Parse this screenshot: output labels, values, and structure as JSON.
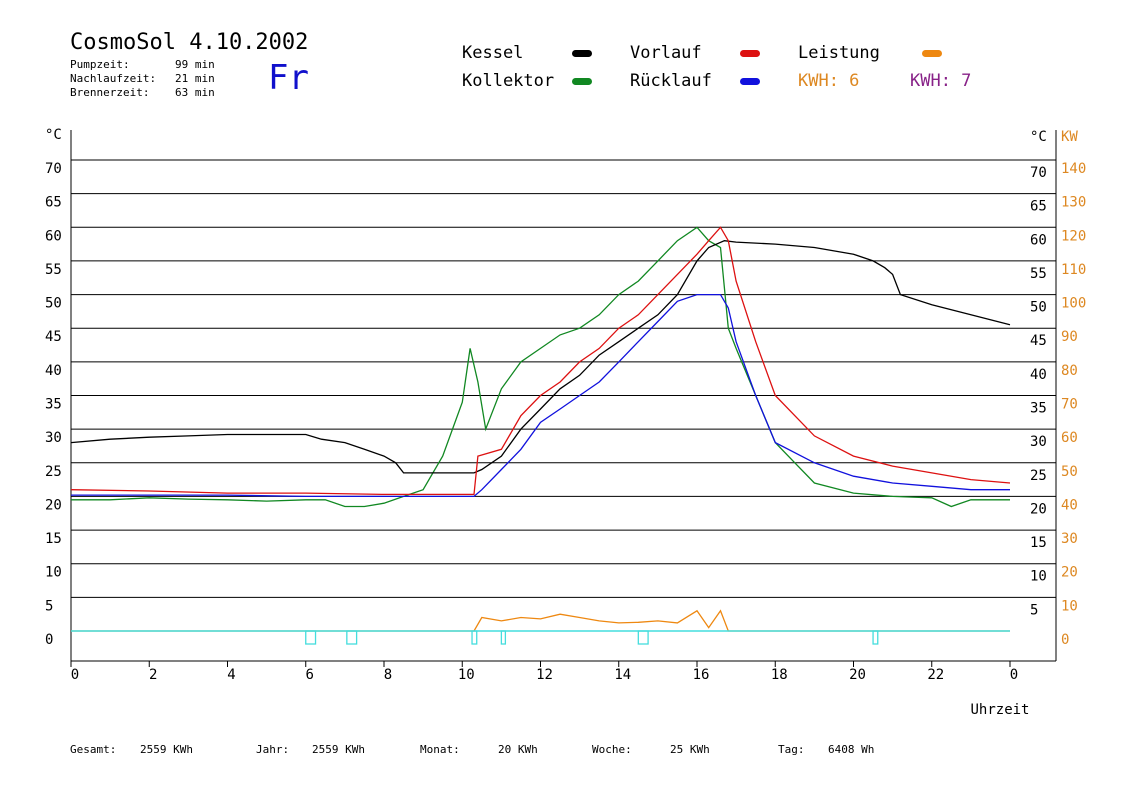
{
  "header": {
    "title": "CosmoSol 4.10.2002",
    "day": "Fr",
    "stats": [
      {
        "label": "Pumpzeit:",
        "value": "99 min"
      },
      {
        "label": "Nachlaufzeit:",
        "value": "21 min"
      },
      {
        "label": "Brennerzeit:",
        "value": "63 min"
      }
    ]
  },
  "legend": {
    "items": [
      {
        "label": "Kessel",
        "color": "#000000"
      },
      {
        "label": "Vorlauf",
        "color": "#dd1111"
      },
      {
        "label": "Leistung",
        "color": "#ee8811"
      },
      {
        "label": "Kollektor",
        "color": "#118822"
      },
      {
        "label": "Rücklauf",
        "color": "#1111dd"
      }
    ],
    "kwh": [
      {
        "text": "KWH: 6",
        "color": "#dd8822"
      },
      {
        "text": "KWH: 7",
        "color": "#882288"
      }
    ]
  },
  "footer": {
    "gesamt_label": "Gesamt:",
    "gesamt_value": "2559 KWh",
    "jahr_label": "Jahr:",
    "jahr_value": "2559 KWh",
    "monat_label": "Monat:",
    "monat_value": "20 KWh",
    "woche_label": "Woche:",
    "woche_value": "25 KWh",
    "tag_label": "Tag:",
    "tag_value": "6408 Wh"
  },
  "chart_data": {
    "type": "line",
    "xlabel": "Uhrzeit",
    "ylabel_left": "°C",
    "ylabel_right_1": "°C",
    "ylabel_right_2": "KW",
    "xlim": [
      0,
      24
    ],
    "ylim": [
      -5,
      75
    ],
    "x_ticks": [
      "0",
      "2",
      "4",
      "6",
      "8",
      "10",
      "12",
      "14",
      "16",
      "18",
      "20",
      "22",
      "0"
    ],
    "y_ticks_left": [
      "0",
      "5",
      "10",
      "15",
      "20",
      "25",
      "30",
      "35",
      "40",
      "45",
      "50",
      "55",
      "60",
      "65",
      "70"
    ],
    "y_ticks_right": [
      "5",
      "10",
      "15",
      "20",
      "25",
      "30",
      "35",
      "40",
      "45",
      "50",
      "55",
      "60",
      "65",
      "70"
    ],
    "y_ticks_kw": [
      "0",
      "10",
      "20",
      "30",
      "40",
      "50",
      "60",
      "70",
      "80",
      "90",
      "100",
      "110",
      "120",
      "130",
      "140"
    ],
    "grid": true,
    "series": [
      {
        "name": "Kessel",
        "color": "#000000",
        "x": [
          0,
          1,
          2,
          3,
          4,
          5,
          6,
          6.4,
          7,
          7.5,
          8,
          8.3,
          8.5,
          9,
          10,
          10.3,
          10.5,
          11,
          11.5,
          12,
          12.5,
          13,
          13.5,
          14,
          14.5,
          15,
          15.5,
          16,
          16.3,
          16.7,
          17,
          18,
          19,
          20,
          20.5,
          20.8,
          21,
          21.2,
          22,
          23,
          24
        ],
        "y": [
          28,
          28.5,
          28.8,
          29,
          29.2,
          29.2,
          29.2,
          28.5,
          28,
          27,
          26,
          25,
          23.5,
          23.5,
          23.5,
          23.5,
          24,
          26,
          30,
          33,
          36,
          38,
          41,
          43,
          45,
          47,
          50,
          55,
          57,
          58,
          57.8,
          57.5,
          57,
          56,
          55,
          54,
          53,
          50,
          48.5,
          47,
          45.5
        ]
      },
      {
        "name": "Vorlauf",
        "color": "#dd1111",
        "x": [
          0,
          2,
          4,
          6,
          8,
          10,
          10.3,
          10.4,
          11,
          11.5,
          12,
          12.5,
          13,
          13.5,
          14,
          14.5,
          15,
          15.5,
          16,
          16.3,
          16.6,
          16.8,
          17,
          17.5,
          18,
          19,
          20,
          21,
          22,
          23,
          24
        ],
        "y": [
          21,
          20.8,
          20.5,
          20.5,
          20.3,
          20.3,
          20.3,
          26,
          27,
          32,
          35,
          37,
          40,
          42,
          45,
          47,
          50,
          53,
          56,
          58,
          60,
          58,
          52,
          43,
          35,
          29,
          26,
          24.5,
          23.5,
          22.5,
          22
        ]
      },
      {
        "name": "Rücklauf",
        "color": "#1111dd",
        "x": [
          0,
          2,
          4,
          6,
          8,
          10,
          10.3,
          10.5,
          11,
          11.5,
          12,
          12.5,
          13,
          13.5,
          14,
          14.5,
          15,
          15.5,
          16,
          16.3,
          16.6,
          16.8,
          17,
          17.5,
          18,
          19,
          20,
          21,
          22,
          23,
          24
        ],
        "y": [
          20.2,
          20.2,
          20.2,
          20,
          20,
          20,
          20,
          21,
          24,
          27,
          31,
          33,
          35,
          37,
          40,
          43,
          46,
          49,
          50,
          50,
          50,
          48,
          43,
          35,
          28,
          25,
          23,
          22,
          21.5,
          21,
          21
        ]
      },
      {
        "name": "Kollektor",
        "color": "#118822",
        "x": [
          0,
          1,
          2,
          3,
          4,
          5,
          6,
          6.5,
          7,
          7.5,
          8,
          8.5,
          9,
          9.5,
          10,
          10.2,
          10.4,
          10.6,
          11,
          11.5,
          12,
          12.5,
          13,
          13.5,
          14,
          14.5,
          15,
          15.5,
          16,
          16.3,
          16.6,
          16.8,
          17,
          17.5,
          18,
          18.5,
          19,
          20,
          21,
          22,
          22.5,
          23,
          24
        ],
        "y": [
          19.5,
          19.5,
          19.8,
          19.6,
          19.5,
          19.3,
          19.5,
          19.5,
          18.5,
          18.5,
          19,
          20,
          21,
          26,
          34,
          42,
          37,
          30,
          36,
          40,
          42,
          44,
          45,
          47,
          50,
          52,
          55,
          58,
          60,
          58,
          57,
          45,
          42,
          35,
          28,
          25,
          22,
          20.5,
          20,
          19.8,
          18.5,
          19.5,
          19.5
        ]
      },
      {
        "name": "Leistung",
        "color": "#ee8811",
        "x": [
          0,
          10.3,
          10.5,
          11,
          11.5,
          12,
          12.5,
          13,
          13.5,
          14,
          14.5,
          15,
          15.5,
          16,
          16.3,
          16.6,
          16.8,
          24
        ],
        "y": [
          0,
          0,
          2,
          1.5,
          2,
          1.8,
          2.5,
          2,
          1.5,
          1.2,
          1.3,
          1.5,
          1.2,
          3,
          0.5,
          3,
          0,
          0
        ]
      }
    ]
  }
}
